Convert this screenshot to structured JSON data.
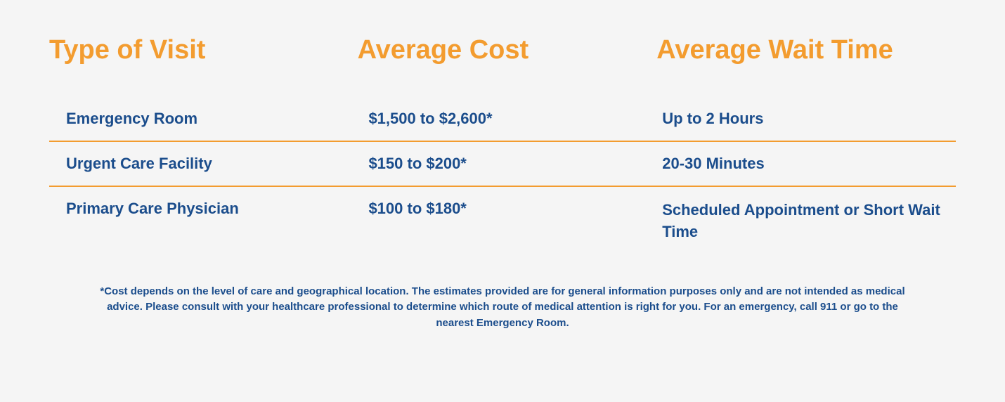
{
  "table": {
    "headers": {
      "col1": "Type of Visit",
      "col2": "Average Cost",
      "col3": "Average Wait Time"
    },
    "rows": [
      {
        "type": "Emergency Room",
        "cost": "$1,500 to $2,600*",
        "wait": "Up to 2 Hours"
      },
      {
        "type": "Urgent Care Facility",
        "cost": "$150 to $200*",
        "wait": "20-30 Minutes"
      },
      {
        "type": "Primary Care Physician",
        "cost": "$100 to $180*",
        "wait": "Scheduled Appointment or Short Wait Time"
      }
    ]
  },
  "footnote": "*Cost depends on the level of care and geographical location. The estimates provided are for general information purposes only and are not intended as medical advice. Please consult with your healthcare professional to determine which route of medical attention is right for you. For an emergency, call 911 or go to the nearest Emergency Room.",
  "styling": {
    "header_color": "#f39c2f",
    "header_fontsize": 38,
    "header_fontweight": 700,
    "data_color": "#1b4d8c",
    "data_fontsize": 22,
    "data_fontweight": 700,
    "divider_color": "#f39c2f",
    "divider_width": 2,
    "background_color": "#f5f5f5",
    "footnote_color": "#1b4d8c",
    "footnote_fontsize": 15,
    "footnote_fontweight": 700,
    "column_widths": [
      "34%",
      "33%",
      "33%"
    ]
  }
}
